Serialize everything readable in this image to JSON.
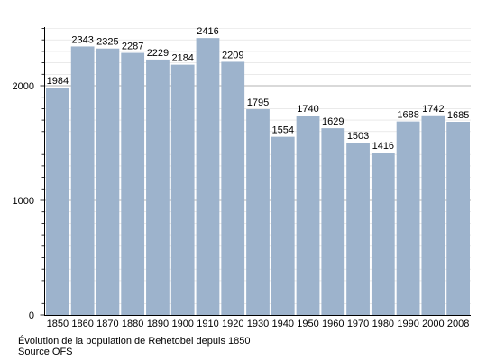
{
  "chart_data": {
    "type": "bar",
    "categories": [
      "1850",
      "1860",
      "1870",
      "1880",
      "1890",
      "1900",
      "1910",
      "1920",
      "1930",
      "1940",
      "1950",
      "1960",
      "1970",
      "1980",
      "1990",
      "2000",
      "2008"
    ],
    "values": [
      1984,
      2343,
      2325,
      2287,
      2229,
      2184,
      2416,
      2209,
      1795,
      1554,
      1740,
      1629,
      1503,
      1416,
      1688,
      1742,
      1685
    ],
    "y_ticks": [
      "0",
      "1000",
      "2000"
    ],
    "ylim": [
      0,
      2500
    ],
    "grid": true,
    "legend": "none",
    "colors": {
      "bar": "#9db3cc",
      "grid_major": "#9a9a9a",
      "grid_minor": "#dddddd",
      "axis": "#000000"
    }
  },
  "caption": {
    "line1": "Évolution de la population de Rehetobel depuis 1850",
    "line2": "Source OFS"
  }
}
